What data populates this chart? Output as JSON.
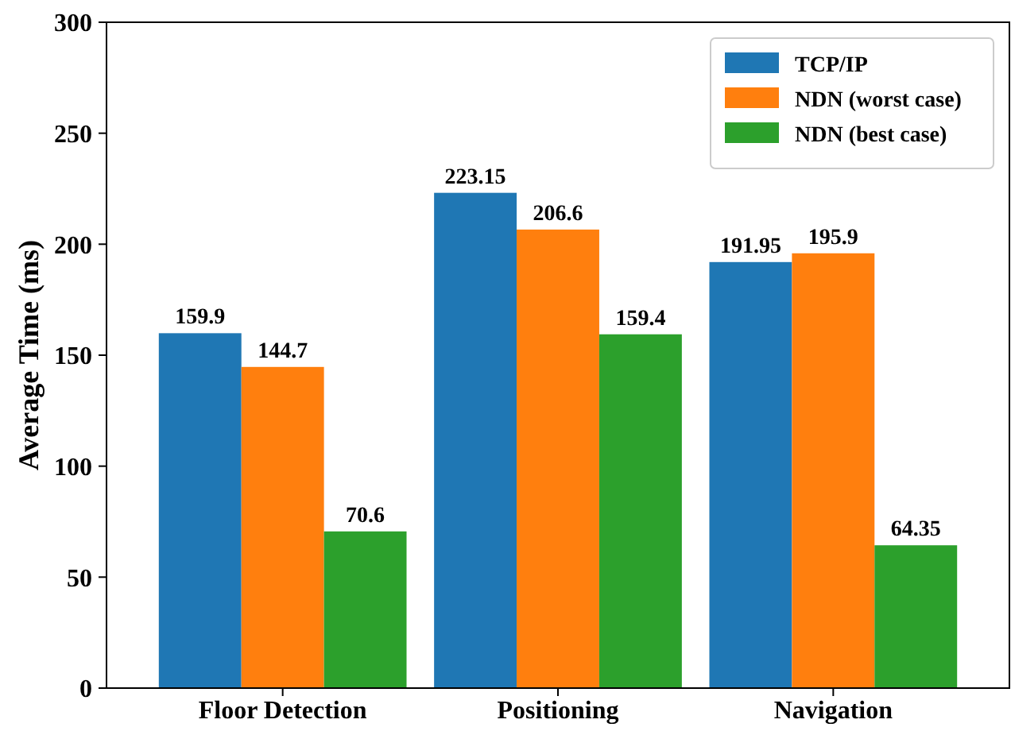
{
  "chart_data": {
    "type": "bar",
    "ylabel": "Average Time (ms)",
    "categories": [
      "Floor Detection",
      "Positioning",
      "Navigation"
    ],
    "series": [
      {
        "name": "TCP/IP",
        "color": "#1f77b4",
        "values": [
          159.9,
          223.15,
          191.95
        ]
      },
      {
        "name": "NDN (worst case)",
        "color": "#ff7f0e",
        "values": [
          144.7,
          206.6,
          195.9
        ]
      },
      {
        "name": "NDN (best case)",
        "color": "#2ca02c",
        "values": [
          70.6,
          159.4,
          64.35
        ]
      }
    ],
    "ylim": [
      0,
      300
    ],
    "yticks": [
      0,
      50,
      100,
      150,
      200,
      250,
      300
    ],
    "data_labels": true,
    "legend": "top right",
    "grid": false
  }
}
